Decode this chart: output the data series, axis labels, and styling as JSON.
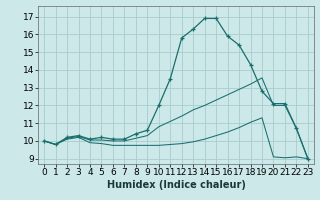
{
  "xlabel": "Humidex (Indice chaleur)",
  "bg_color": "#cce8e8",
  "grid_color": "#aacccc",
  "line_color": "#1a6e6e",
  "xlim": [
    -0.5,
    23.5
  ],
  "ylim": [
    8.7,
    17.6
  ],
  "yticks": [
    9,
    10,
    11,
    12,
    13,
    14,
    15,
    16,
    17
  ],
  "xticks": [
    0,
    1,
    2,
    3,
    4,
    5,
    6,
    7,
    8,
    9,
    10,
    11,
    12,
    13,
    14,
    15,
    16,
    17,
    18,
    19,
    20,
    21,
    22,
    23
  ],
  "line1_x": [
    0,
    1,
    2,
    3,
    4,
    5,
    6,
    7,
    8,
    9,
    10,
    11,
    12,
    13,
    14,
    15,
    16,
    17,
    18,
    19,
    20,
    21,
    22,
    23
  ],
  "line1_y": [
    10.0,
    9.8,
    10.2,
    10.3,
    10.1,
    10.2,
    10.1,
    10.1,
    10.4,
    10.6,
    12.0,
    13.5,
    15.8,
    16.3,
    16.9,
    16.9,
    15.9,
    15.4,
    14.3,
    12.8,
    12.1,
    12.1,
    10.7,
    9.0
  ],
  "line2_x": [
    0,
    1,
    2,
    3,
    4,
    5,
    6,
    7,
    8,
    9,
    10,
    11,
    12,
    13,
    14,
    15,
    16,
    17,
    18,
    19,
    20,
    21,
    22,
    23
  ],
  "line2_y": [
    10.0,
    9.8,
    10.1,
    10.2,
    9.9,
    9.85,
    9.75,
    9.75,
    9.75,
    9.75,
    9.75,
    9.8,
    9.85,
    9.95,
    10.1,
    10.3,
    10.5,
    10.75,
    11.05,
    11.3,
    9.1,
    9.05,
    9.1,
    9.0
  ],
  "line3_x": [
    0,
    1,
    2,
    3,
    4,
    5,
    6,
    7,
    8,
    9,
    10,
    11,
    12,
    13,
    14,
    15,
    16,
    17,
    18,
    19,
    20,
    21,
    22,
    23
  ],
  "line3_y": [
    10.0,
    9.8,
    10.15,
    10.25,
    10.05,
    10.05,
    10.0,
    10.0,
    10.15,
    10.3,
    10.8,
    11.1,
    11.4,
    11.75,
    12.0,
    12.3,
    12.6,
    12.9,
    13.2,
    13.55,
    12.0,
    12.0,
    10.7,
    9.0
  ],
  "xlabel_fontsize": 7,
  "tick_fontsize": 6.5
}
